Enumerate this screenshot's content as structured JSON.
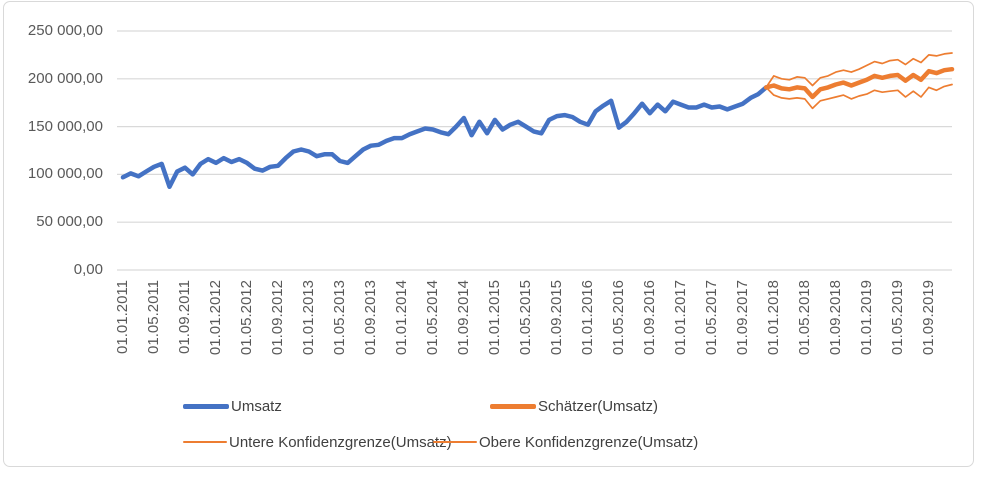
{
  "chart_data": {
    "type": "line",
    "title": "",
    "xlabel": "",
    "ylabel": "",
    "ylim": [
      0,
      250000
    ],
    "months_total": 108,
    "grid": "horizontal",
    "legend_position": "bottom",
    "y_tick_labels": [
      "0,00",
      "50 000,00",
      "100 000,00",
      "150 000,00",
      "200 000,00",
      "250 000,00"
    ],
    "x_tick_labels": [
      "01.01.2011",
      "01.05.2011",
      "01.09.2011",
      "01.01.2012",
      "01.05.2012",
      "01.09.2012",
      "01.01.2013",
      "01.05.2013",
      "01.09.2013",
      "01.01.2014",
      "01.05.2014",
      "01.09.2014",
      "01.01.2015",
      "01.05.2015",
      "01.09.2015",
      "01.01.2016",
      "01.05.2016",
      "01.09.2016",
      "01.01.2017",
      "01.05.2017",
      "01.09.2017",
      "01.01.2018",
      "01.05.2018",
      "01.09.2018",
      "01.01.2019",
      "01.05.2019",
      "01.09.2019"
    ],
    "x_tick_month_step": 4,
    "series": [
      {
        "name": "Umsatz",
        "color": "#4472C4",
        "weight": "thick",
        "start_month": 0,
        "values": [
          97000,
          101000,
          98000,
          103000,
          108000,
          111000,
          87000,
          103000,
          107000,
          100000,
          111000,
          116000,
          112000,
          117000,
          113000,
          116000,
          112000,
          106000,
          104000,
          108000,
          109000,
          117000,
          124000,
          126000,
          124000,
          119000,
          121000,
          121000,
          114000,
          112000,
          119000,
          126000,
          130000,
          131000,
          135000,
          138000,
          138000,
          142000,
          145000,
          148000,
          147000,
          144000,
          142000,
          150000,
          159000,
          141000,
          155000,
          143000,
          157000,
          147000,
          152000,
          155000,
          150000,
          145000,
          143000,
          157000,
          161000,
          162000,
          160000,
          155000,
          152000,
          166000,
          172000,
          177000,
          149000,
          155000,
          164000,
          174000,
          164000,
          173000,
          166000,
          176000,
          173000,
          170000,
          170000,
          173000,
          170000,
          171000,
          168000,
          171000,
          174000,
          180000,
          184000,
          191000
        ]
      },
      {
        "name": "Untere Konfidenzgrenze(Umsatz)",
        "color": "#ED7D31",
        "weight": "thin",
        "start_month": 83,
        "values": [
          191000,
          183000,
          180000,
          179000,
          180000,
          179000,
          169000,
          177000,
          179000,
          181000,
          183000,
          179000,
          182000,
          184000,
          188000,
          186000,
          187000,
          188000,
          181000,
          187000,
          181000,
          191000,
          188000,
          192000,
          194000
        ]
      },
      {
        "name": "Obere Konfidenzgrenze(Umsatz)",
        "color": "#ED7D31",
        "weight": "thin",
        "start_month": 83,
        "values": [
          191000,
          203000,
          200000,
          199000,
          202000,
          201000,
          193000,
          201000,
          203000,
          207000,
          209000,
          207000,
          210000,
          214000,
          218000,
          216000,
          219000,
          220000,
          215000,
          221000,
          217000,
          225000,
          224000,
          226000,
          227000
        ]
      },
      {
        "name": "Schätzer(Umsatz)",
        "color": "#ED7D31",
        "weight": "thick",
        "start_month": 83,
        "values": [
          191000,
          193000,
          190000,
          189000,
          191000,
          190000,
          181000,
          189000,
          191000,
          194000,
          196000,
          193000,
          196000,
          199000,
          203000,
          201000,
          203000,
          204000,
          198000,
          204000,
          199000,
          208000,
          206000,
          209000,
          210000
        ]
      }
    ],
    "legend": [
      {
        "label": "Umsatz",
        "color": "#4472C4",
        "thick": true
      },
      {
        "label": "Schätzer(Umsatz)",
        "color": "#ED7D31",
        "thick": true
      },
      {
        "label": "Untere Konfidenzgrenze(Umsatz)",
        "color": "#ED7D31",
        "thick": false
      },
      {
        "label": "Obere Konfidenzgrenze(Umsatz)",
        "color": "#ED7D31",
        "thick": false
      }
    ],
    "colors": {
      "gridline": "#d9d9d9",
      "axis_text": "#595959",
      "legend_text": "#404040",
      "frame_border": "#d9d9d9"
    }
  }
}
